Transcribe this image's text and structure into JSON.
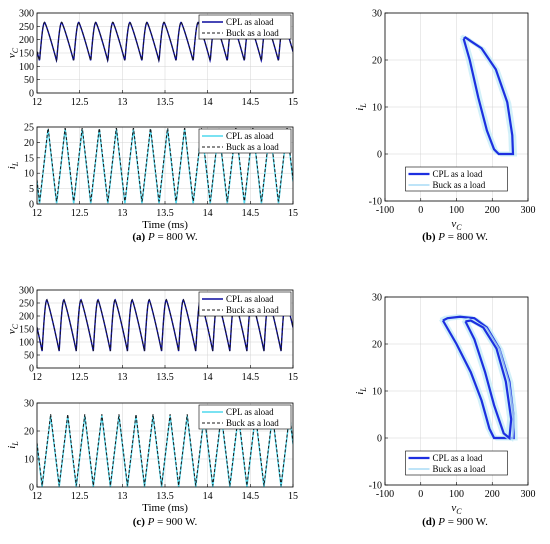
{
  "colors": {
    "cpl": "#0a0a9e",
    "buck": "#1a1a1a",
    "cyan": "#4fd8ee",
    "blue_thick": "#1d2fe0",
    "light_blue": "#7ec8f0"
  },
  "captions": {
    "a": {
      "label": "(a)",
      "text": "P = 800 W."
    },
    "b": {
      "label": "(b)",
      "text": "P = 800 W."
    },
    "c": {
      "label": "(c)",
      "text": "P = 900 W."
    },
    "d": {
      "label": "(d)",
      "text": "P = 900 W."
    }
  },
  "chart_data": [
    {
      "id": "a_vc",
      "type": "line",
      "xlim": [
        12,
        15
      ],
      "ylim": [
        0,
        300
      ],
      "xticks": [
        12,
        12.5,
        13,
        13.5,
        14,
        14.5,
        15
      ],
      "yticks": [
        0,
        50,
        100,
        150,
        200,
        250,
        300
      ],
      "xlabel": "",
      "ylabel": "v_C",
      "grid": true,
      "legend_position": "top-right",
      "wave": {
        "kind": "sawtooth",
        "period": 0.2,
        "phase": 12.03,
        "min": 120,
        "max": 265,
        "rise_fraction": 0.3
      },
      "series": [
        {
          "name": "CPL as aload",
          "style": "solid-dark-blue"
        },
        {
          "name": "Buck  as a load",
          "style": "dashed-black"
        }
      ]
    },
    {
      "id": "a_il",
      "type": "line",
      "xlim": [
        12,
        15
      ],
      "ylim": [
        0,
        25
      ],
      "xticks": [
        12,
        12.5,
        13,
        13.5,
        14,
        14.5,
        15
      ],
      "yticks": [
        0,
        5,
        10,
        15,
        20,
        25
      ],
      "xlabel": "Time (ms)",
      "ylabel": "i_L",
      "grid": true,
      "legend_position": "top-right",
      "wave": {
        "kind": "triangle",
        "period": 0.2,
        "phase": 12.03,
        "min": 0,
        "max": 24.5,
        "rise_fraction": 0.5
      },
      "series": [
        {
          "name": "CPL as aload",
          "style": "solid-cyan"
        },
        {
          "name": "Buck  as a load",
          "style": "dashed-black"
        }
      ]
    },
    {
      "id": "b_phase",
      "type": "line",
      "xlim": [
        -100,
        300
      ],
      "ylim": [
        -10,
        30
      ],
      "xticks": [
        -100,
        0,
        100,
        200,
        300
      ],
      "yticks": [
        -10,
        0,
        10,
        20,
        30
      ],
      "xlabel": "v_C",
      "ylabel": "i_L",
      "grid": true,
      "legend_position": "bottom-center",
      "loops": [
        [
          [
            120,
            24.5
          ],
          [
            137,
            20
          ],
          [
            161,
            12
          ],
          [
            185,
            5
          ],
          [
            205,
            1
          ],
          [
            218,
            0
          ],
          [
            258,
            0
          ],
          [
            256,
            4
          ],
          [
            242,
            11
          ],
          [
            210,
            18
          ],
          [
            170,
            22.5
          ],
          [
            140,
            24
          ],
          [
            125,
            24.8
          ],
          [
            120,
            24.5
          ]
        ]
      ],
      "series": [
        {
          "name": "CPL as a load",
          "style": "thick-blue"
        },
        {
          "name": "Buck  as a load",
          "style": "thin-light-blue"
        }
      ]
    },
    {
      "id": "c_vc",
      "type": "line",
      "xlim": [
        12,
        15
      ],
      "ylim": [
        0,
        300
      ],
      "xticks": [
        12,
        12.5,
        13,
        13.5,
        14,
        14.5,
        15
      ],
      "yticks": [
        0,
        50,
        100,
        150,
        200,
        250,
        300
      ],
      "xlabel": "",
      "ylabel": "v_C",
      "grid": true,
      "legend_position": "top-right",
      "wave": {
        "kind": "sawtooth",
        "period": 0.2,
        "phase": 12.06,
        "min": 65,
        "max": 262,
        "rise_fraction": 0.28
      },
      "series": [
        {
          "name": "CPL as aload",
          "style": "solid-dark-blue"
        },
        {
          "name": "Buck  as a load",
          "style": "dashed-black"
        }
      ]
    },
    {
      "id": "c_il",
      "type": "line",
      "xlim": [
        12,
        15
      ],
      "ylim": [
        0,
        30
      ],
      "xticks": [
        12,
        12.5,
        13,
        13.5,
        14,
        14.5,
        15
      ],
      "yticks": [
        0,
        10,
        20,
        30
      ],
      "xlabel": "Time (ms)",
      "ylabel": "i_L",
      "grid": true,
      "legend_position": "top-right",
      "wave": {
        "kind": "triangle",
        "period": 0.2,
        "phase": 12.06,
        "min": 0,
        "max": 25.5,
        "rise_fraction": 0.5
      },
      "series": [
        {
          "name": "CPL as aload",
          "style": "solid-cyan"
        },
        {
          "name": "Buck  as a load",
          "style": "dashed-black"
        }
      ]
    },
    {
      "id": "d_phase",
      "type": "line",
      "xlim": [
        -100,
        300
      ],
      "ylim": [
        -10,
        30
      ],
      "xticks": [
        -100,
        0,
        100,
        200,
        300
      ],
      "yticks": [
        -10,
        0,
        10,
        20,
        30
      ],
      "xlabel": "v_C",
      "ylabel": "i_L",
      "grid": true,
      "legend_position": "bottom-center",
      "loops": [
        [
          [
            62,
            25
          ],
          [
            100,
            20
          ],
          [
            140,
            14
          ],
          [
            170,
            8
          ],
          [
            192,
            2
          ],
          [
            205,
            0
          ],
          [
            260,
            0
          ],
          [
            259,
            5
          ],
          [
            248,
            12
          ],
          [
            220,
            19
          ],
          [
            185,
            23.5
          ],
          [
            150,
            25.5
          ],
          [
            110,
            25.8
          ],
          [
            75,
            25.5
          ],
          [
            62,
            25
          ]
        ],
        [
          [
            125,
            24.8
          ],
          [
            150,
            21
          ],
          [
            180,
            14
          ],
          [
            205,
            7
          ],
          [
            232,
            1
          ],
          [
            248,
            0
          ],
          [
            253,
            4
          ],
          [
            238,
            12
          ],
          [
            212,
            19
          ],
          [
            175,
            23.5
          ],
          [
            140,
            25
          ],
          [
            125,
            24.8
          ]
        ]
      ],
      "series": [
        {
          "name": "CPL as a load",
          "style": "thick-blue"
        },
        {
          "name": "Buck  as a load",
          "style": "thin-light-blue"
        }
      ]
    }
  ]
}
